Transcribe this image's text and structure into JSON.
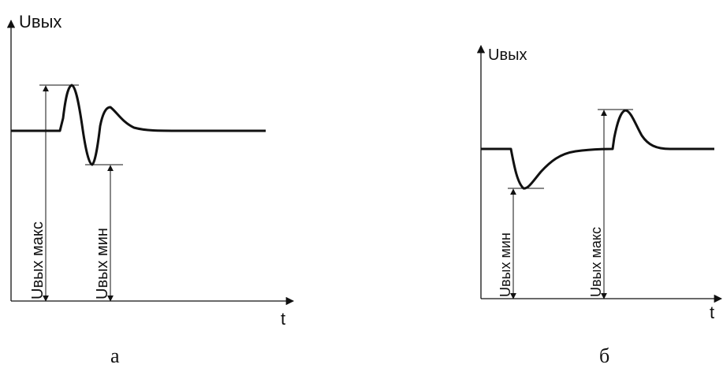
{
  "diagram_a": {
    "y_axis_label": "Uвых",
    "x_axis_label": "t",
    "max_label": "Uвых макс",
    "min_label": "Uвых мин",
    "caption": "а"
  },
  "diagram_b": {
    "y_axis_label": "Uвых",
    "x_axis_label": "t",
    "max_label": "Uвых макс",
    "min_label": "Uвых мин",
    "caption": "б"
  },
  "colors": {
    "ink": "#111111",
    "background": "#ffffff"
  }
}
